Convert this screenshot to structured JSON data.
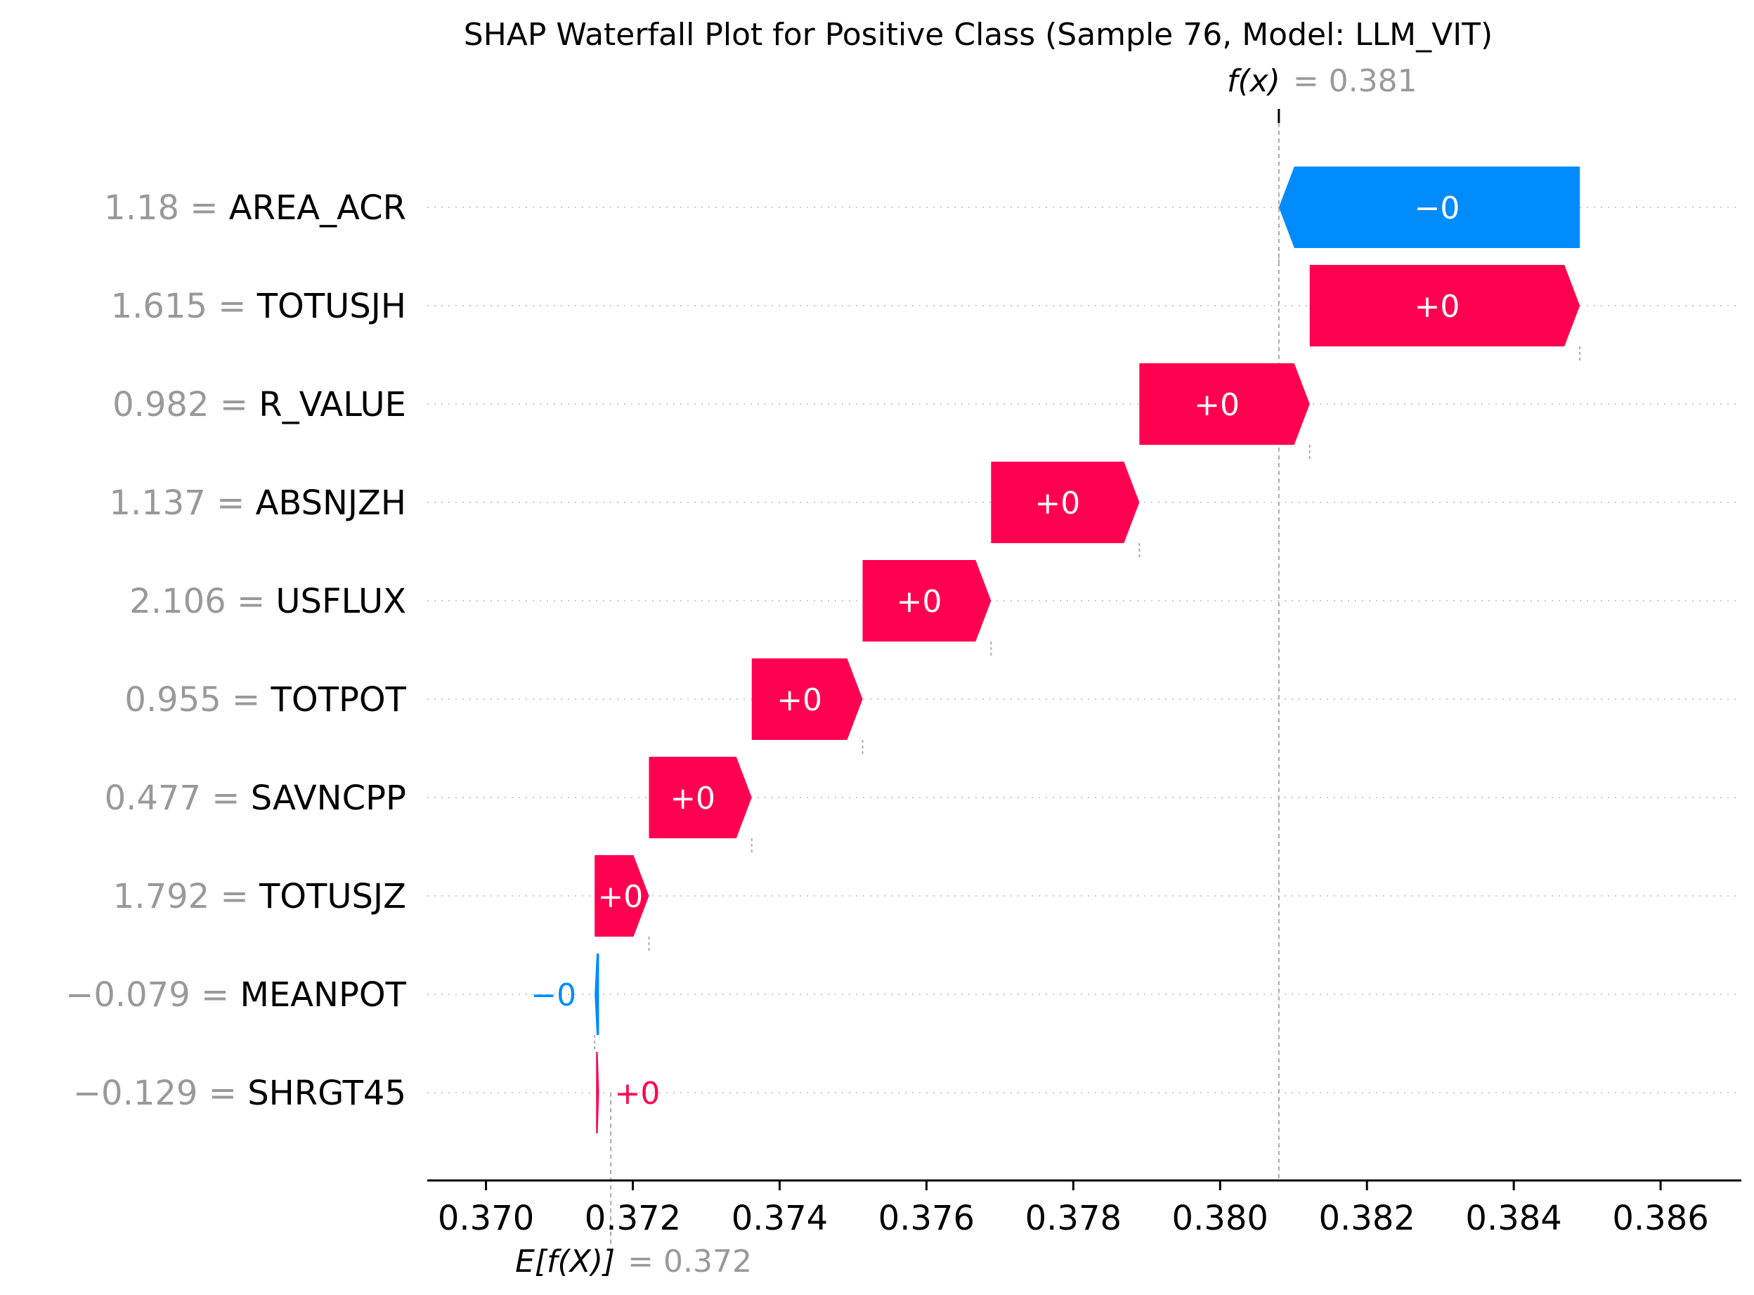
{
  "chart_data": {
    "type": "waterfall",
    "title": "SHAP Waterfall Plot for Positive Class (Sample 76, Model: LLM_VIT)",
    "fx": {
      "label": "f(x)",
      "value_text": "= 0.381",
      "value": 0.3808
    },
    "efx": {
      "label": "E[f(X)]",
      "value_text": "= 0.372",
      "value": 0.3717
    },
    "xlim": [
      0.3692,
      0.3871
    ],
    "xticks": [
      {
        "value": 0.37,
        "label": "0.370"
      },
      {
        "value": 0.372,
        "label": "0.372"
      },
      {
        "value": 0.374,
        "label": "0.374"
      },
      {
        "value": 0.376,
        "label": "0.376"
      },
      {
        "value": 0.378,
        "label": "0.378"
      },
      {
        "value": 0.38,
        "label": "0.380"
      },
      {
        "value": 0.382,
        "label": "0.382"
      },
      {
        "value": 0.384,
        "label": "0.384"
      },
      {
        "value": 0.386,
        "label": "0.386"
      }
    ],
    "features": [
      {
        "value_text": "1.18",
        "name": "AREA_ACR",
        "start": 0.3849,
        "end": 0.3808,
        "bar_label": "−0",
        "sign": "neg"
      },
      {
        "value_text": "1.615",
        "name": "TOTUSJH",
        "start": 0.38122,
        "end": 0.3849,
        "bar_label": "+0",
        "sign": "pos"
      },
      {
        "value_text": "0.982",
        "name": "R_VALUE",
        "start": 0.3789,
        "end": 0.38122,
        "bar_label": "+0",
        "sign": "pos"
      },
      {
        "value_text": "1.137",
        "name": "ABSNJZH",
        "start": 0.37688,
        "end": 0.3789,
        "bar_label": "+0",
        "sign": "pos"
      },
      {
        "value_text": "2.106",
        "name": "USFLUX",
        "start": 0.37513,
        "end": 0.37688,
        "bar_label": "+0",
        "sign": "pos"
      },
      {
        "value_text": "0.955",
        "name": "TOTPOT",
        "start": 0.37362,
        "end": 0.37513,
        "bar_label": "+0",
        "sign": "pos"
      },
      {
        "value_text": "0.477",
        "name": "SAVNCPP",
        "start": 0.37222,
        "end": 0.37362,
        "bar_label": "+0",
        "sign": "pos"
      },
      {
        "value_text": "1.792",
        "name": "TOTUSJZ",
        "start": 0.37148,
        "end": 0.37222,
        "bar_label": "+0",
        "sign": "pos"
      },
      {
        "value_text": "−0.079",
        "name": "MEANPOT",
        "start": 0.37154,
        "end": 0.37148,
        "bar_label": "−0",
        "sign": "neg"
      },
      {
        "value_text": "−0.129",
        "name": "SHRGT45",
        "start": 0.3715,
        "end": 0.37154,
        "bar_label": "+0",
        "sign": "pos"
      }
    ],
    "colors": {
      "positive": "#ff0051",
      "negative": "#008bfb",
      "gray_text": "#999999",
      "axis": "#000000",
      "grid": "#cccccc"
    },
    "grid": true
  }
}
